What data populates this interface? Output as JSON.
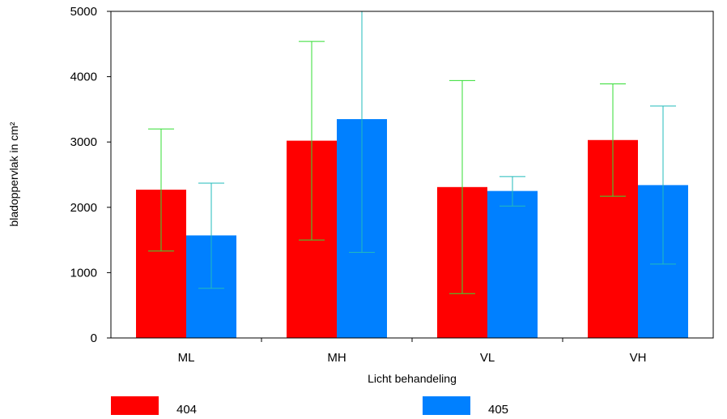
{
  "chart_data": {
    "type": "bar",
    "title": "",
    "xlabel": "Licht behandeling",
    "ylabel": "bladoppervlak in cm²",
    "ylim": [
      0,
      5000
    ],
    "yticks": [
      0,
      1000,
      2000,
      3000,
      4000,
      5000
    ],
    "grid": false,
    "legend_position": "bottom",
    "categories": [
      "ML",
      "MH",
      "VL",
      "VH"
    ],
    "series": [
      {
        "name": "404",
        "color": "#ff0000",
        "error_color": "#33dd33",
        "values": [
          2270,
          3020,
          2310,
          3030
        ],
        "error_low": [
          1330,
          1500,
          680,
          2170
        ],
        "error_high": [
          3200,
          4540,
          3940,
          3890
        ]
      },
      {
        "name": "405",
        "color": "#0080ff",
        "error_color": "#22bbbb",
        "values": [
          1570,
          3350,
          2250,
          2340
        ],
        "error_low": [
          760,
          1310,
          2020,
          1130
        ],
        "error_high": [
          2370,
          5000,
          2470,
          3550
        ]
      }
    ]
  }
}
